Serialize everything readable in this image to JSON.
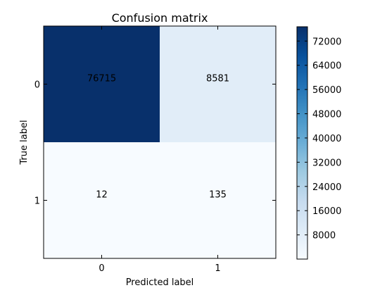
{
  "chart_data": {
    "type": "heatmap",
    "title": "Confusion matrix",
    "xlabel": "Predicted label",
    "ylabel": "True label",
    "x_categories": [
      "0",
      "1"
    ],
    "y_categories": [
      "0",
      "1"
    ],
    "matrix": [
      [
        76715,
        8581
      ],
      [
        12,
        135
      ]
    ],
    "cell_labels": [
      [
        "76715",
        "8581"
      ],
      [
        "12",
        "135"
      ]
    ],
    "colormap": "Blues",
    "colorbar": {
      "range": [
        12,
        76715
      ],
      "ticks": [
        8000,
        16000,
        24000,
        32000,
        40000,
        48000,
        56000,
        64000,
        72000
      ],
      "tick_labels": [
        "8000",
        "16000",
        "24000",
        "32000",
        "40000",
        "48000",
        "56000",
        "64000",
        "72000"
      ]
    },
    "colors": {
      "low": "#f7fbff",
      "high": "#08306b"
    }
  }
}
